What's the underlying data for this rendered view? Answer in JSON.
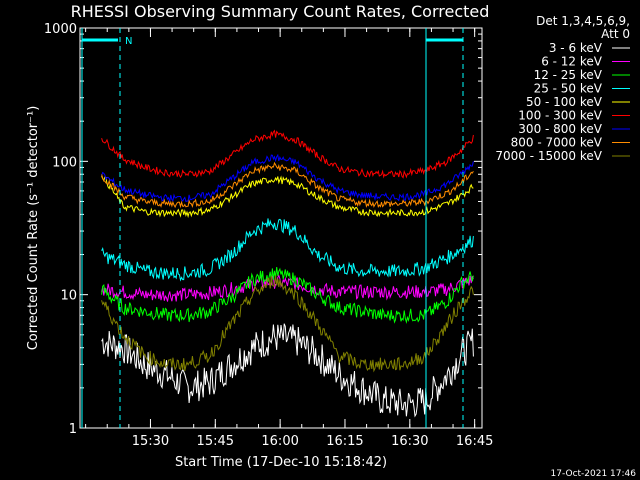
{
  "chart_data": {
    "type": "line",
    "title": "RHESSI Observing Summary Count Rates, Corrected",
    "xlabel": "Start Time (17-Dec-10 15:18:42)",
    "ylabel": "Corrected Count Rate (s⁻¹ detector⁻¹)",
    "yscale": "log",
    "ylim": [
      1,
      1000
    ],
    "y_ticks": [
      {
        "value": 1,
        "label": "1"
      },
      {
        "value": 10,
        "label": "10"
      },
      {
        "value": 100,
        "label": "100"
      },
      {
        "value": 1000,
        "label": "1000"
      }
    ],
    "x_range_min": [
      -5,
      88
    ],
    "x_ticks": [
      {
        "min": 11.3,
        "label": "15:30"
      },
      {
        "min": 26.3,
        "label": "15:45"
      },
      {
        "min": 41.3,
        "label": "16:00"
      },
      {
        "min": 56.3,
        "label": "16:15"
      },
      {
        "min": 71.3,
        "label": "16:30"
      },
      {
        "min": 86.3,
        "label": "16:45"
      }
    ],
    "header": [
      "Det 1,3,4,5,6,9,",
      "Att 0"
    ],
    "footer_date": "17-Oct-2021 17:46",
    "flag_label": "N",
    "series": [
      {
        "name": "3 - 6 keV",
        "color": "#ffffff",
        "x": [
          0,
          5,
          10,
          15,
          20,
          25,
          30,
          35,
          40,
          45,
          50,
          55,
          60,
          65,
          70,
          75,
          80,
          83,
          86
        ],
        "values": [
          4.5,
          4.0,
          3.0,
          2.5,
          2.0,
          2.2,
          3.0,
          4.0,
          4.8,
          4.5,
          3.5,
          2.5,
          2.0,
          1.6,
          1.5,
          1.6,
          2.5,
          3.5,
          4.5
        ]
      },
      {
        "name": "6 - 12 keV",
        "color": "#ff00ff",
        "x": [
          0,
          5,
          10,
          15,
          20,
          25,
          30,
          35,
          40,
          45,
          50,
          55,
          60,
          65,
          70,
          75,
          80,
          83,
          86
        ],
        "values": [
          11,
          10.5,
          10,
          10,
          10,
          10.3,
          11,
          12,
          12.5,
          12,
          11,
          10.5,
          10.5,
          10.5,
          10.5,
          10.5,
          11,
          12,
          13
        ]
      },
      {
        "name": "12 - 25 keV",
        "color": "#00ff00",
        "x": [
          0,
          5,
          10,
          15,
          20,
          25,
          30,
          35,
          40,
          45,
          50,
          55,
          60,
          65,
          70,
          75,
          80,
          83,
          86
        ],
        "values": [
          11,
          8,
          7.5,
          7,
          7,
          7.5,
          9.5,
          13,
          14.5,
          13,
          10,
          8,
          7.5,
          7,
          7,
          7,
          9,
          12,
          14
        ]
      },
      {
        "name": "25 - 50 keV",
        "color": "#00ffff",
        "x": [
          0,
          5,
          10,
          15,
          20,
          25,
          30,
          35,
          40,
          45,
          50,
          55,
          60,
          65,
          70,
          75,
          80,
          83,
          86
        ],
        "values": [
          20,
          17,
          15,
          14.5,
          14.5,
          15.5,
          20,
          30,
          35,
          30,
          20,
          16,
          15,
          15,
          15,
          16,
          19,
          22,
          26
        ]
      },
      {
        "name": "50 - 100 keV",
        "color": "#ffff00",
        "x": [
          0,
          5,
          10,
          15,
          20,
          25,
          30,
          35,
          40,
          45,
          50,
          55,
          60,
          65,
          70,
          75,
          80,
          83,
          86
        ],
        "values": [
          80,
          46,
          42,
          41,
          41,
          43,
          54,
          68,
          74,
          68,
          54,
          45,
          42,
          41,
          41,
          42,
          48,
          55,
          65
        ]
      },
      {
        "name": "100 - 300 keV",
        "color": "#ff0000",
        "x": [
          0,
          5,
          10,
          15,
          20,
          25,
          30,
          35,
          40,
          45,
          50,
          55,
          60,
          65,
          70,
          75,
          80,
          83,
          86
        ],
        "values": [
          150,
          105,
          90,
          82,
          80,
          84,
          110,
          145,
          160,
          145,
          110,
          88,
          82,
          80,
          80,
          85,
          100,
          120,
          150
        ]
      },
      {
        "name": "300 - 800 keV",
        "color": "#0000ff",
        "x": [
          0,
          5,
          10,
          15,
          20,
          25,
          30,
          35,
          40,
          45,
          50,
          55,
          60,
          65,
          70,
          75,
          80,
          83,
          86
        ],
        "values": [
          80,
          62,
          56,
          53,
          53,
          56,
          74,
          98,
          107,
          98,
          74,
          60,
          56,
          54,
          54,
          57,
          68,
          80,
          98
        ]
      },
      {
        "name": "800 - 7000 keV",
        "color": "#ff8c00",
        "x": [
          0,
          5,
          10,
          15,
          20,
          25,
          30,
          35,
          40,
          45,
          50,
          55,
          60,
          65,
          70,
          75,
          80,
          83,
          86
        ],
        "values": [
          78,
          55,
          50,
          48,
          48,
          50,
          64,
          85,
          92,
          85,
          64,
          52,
          49,
          48,
          48,
          50,
          58,
          68,
          85
        ]
      },
      {
        "name": "7000 - 15000 keV",
        "color": "#808000",
        "x": [
          0,
          5,
          10,
          15,
          20,
          25,
          30,
          35,
          40,
          45,
          50,
          55,
          60,
          65,
          70,
          75,
          80,
          83,
          86
        ],
        "values": [
          9,
          5,
          3.5,
          3.0,
          3.0,
          3.5,
          6,
          10,
          13,
          10,
          6,
          3.5,
          3.0,
          3.0,
          3.0,
          3.5,
          6,
          8.5,
          11
        ]
      }
    ]
  }
}
